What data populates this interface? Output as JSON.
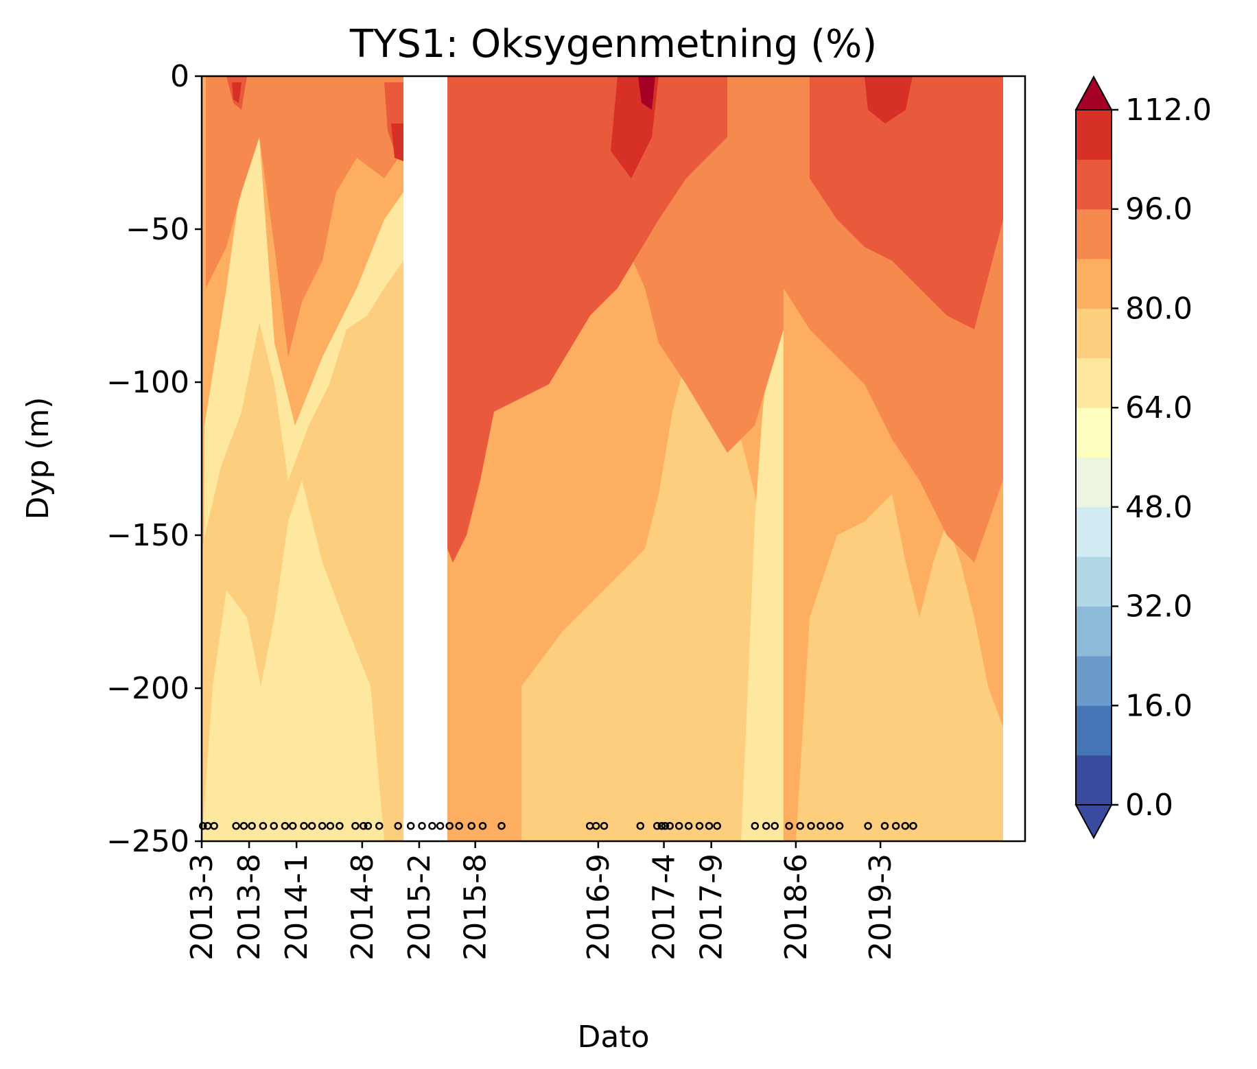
{
  "chart_data": {
    "type": "heatmap",
    "title": "TYS1: Oksygenmetning (%)",
    "xlabel": "Dato",
    "ylabel": "Dyp (m)",
    "ylim": [
      -250,
      0
    ],
    "y_ticks": [
      "0",
      "−50",
      "−100",
      "−150",
      "−200",
      "−250"
    ],
    "y_tick_values": [
      0,
      -50,
      -100,
      -150,
      -200,
      -250
    ],
    "x_ticks": [
      "2013-3",
      "2013-8",
      "2014-1",
      "2014-8",
      "2015-2",
      "2015-8",
      "2016-9",
      "2017-4",
      "2017-9",
      "2018-6",
      "2019-3"
    ],
    "x_tick_values": [
      "2013-03-01",
      "2013-08-01",
      "2014-01-01",
      "2014-08-01",
      "2015-02-01",
      "2015-08-01",
      "2016-09-01",
      "2017-04-01",
      "2017-09-01",
      "2018-06-01",
      "2019-03-01"
    ],
    "xlim": [
      "2013-03-01",
      "2020-06-10"
    ],
    "colorbar": {
      "levels": [
        0,
        8,
        16,
        24,
        32,
        40,
        48,
        56,
        64,
        72,
        80,
        88,
        96,
        104,
        112
      ],
      "tick_values": [
        0,
        16,
        32,
        48,
        64,
        80,
        96,
        112
      ],
      "tick_labels": [
        "0.0",
        "16.0",
        "32.0",
        "48.0",
        "64.0",
        "80.0",
        "96.0",
        "112.0"
      ],
      "colors": [
        "#3a4a9e",
        "#4575b4",
        "#6a9bcb",
        "#8dbad9",
        "#b1d7e7",
        "#d2ebf2",
        "#ecf5e2",
        "#ffffbf",
        "#fee8a0",
        "#fdce7e",
        "#fdae61",
        "#f68a4e",
        "#e95a3c",
        "#d73027",
        "#a50026"
      ],
      "extend": "both"
    },
    "sample_dates": [
      "2013-03-05",
      "2013-03-20",
      "2013-04-10",
      "2013-06-20",
      "2013-07-15",
      "2013-08-10",
      "2013-09-15",
      "2013-10-20",
      "2013-11-25",
      "2013-12-20",
      "2014-01-25",
      "2014-02-20",
      "2014-03-25",
      "2014-04-20",
      "2014-05-20",
      "2014-07-10",
      "2014-08-05",
      "2014-08-20",
      "2014-09-25",
      "2014-11-25",
      "2015-01-05",
      "2015-02-10",
      "2015-03-15",
      "2015-04-10",
      "2015-05-10",
      "2015-06-10",
      "2015-07-20",
      "2015-08-25",
      "2015-10-25",
      "2016-08-05",
      "2016-08-25",
      "2016-09-20",
      "2017-01-15",
      "2017-03-10",
      "2017-03-25",
      "2017-04-05",
      "2017-04-20",
      "2017-05-20",
      "2017-06-20",
      "2017-07-25",
      "2017-08-25",
      "2017-09-20",
      "2018-01-20",
      "2018-02-25",
      "2018-03-25",
      "2018-05-10",
      "2018-06-15",
      "2018-07-20",
      "2018-08-20",
      "2018-09-20",
      "2018-10-20",
      "2019-01-20",
      "2019-03-15",
      "2019-04-20",
      "2019-05-20",
      "2019-06-15"
    ],
    "grid": false,
    "legend": "colorbar-right"
  }
}
